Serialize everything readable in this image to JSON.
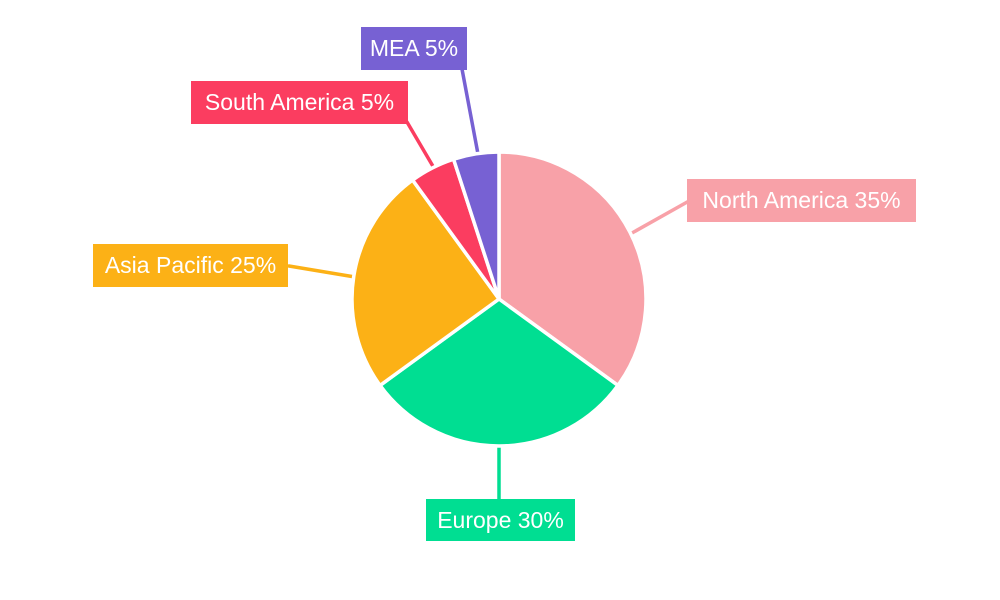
{
  "canvas": {
    "background": "#ffffff"
  },
  "chart_data": {
    "type": "pie",
    "title": "",
    "categories": [
      "North America",
      "Europe",
      "Asia Pacific",
      "South America",
      "MEA"
    ],
    "values": [
      35,
      30,
      25,
      5,
      5
    ],
    "unit": "%",
    "colors": [
      "#F8A1A8",
      "#00DE92",
      "#FCB116",
      "#FB3D60",
      "#7761D3"
    ],
    "labels": [
      "North America 35%",
      "Europe 30%",
      "Asia Pacific 25%",
      "South America 5%",
      "MEA 5%"
    ],
    "label_text_color": "#ffffff",
    "slice_gap_color": "#ffffff",
    "start_angle_deg": 0,
    "direction": "clockwise",
    "legend_position": "none",
    "grid": "off"
  }
}
